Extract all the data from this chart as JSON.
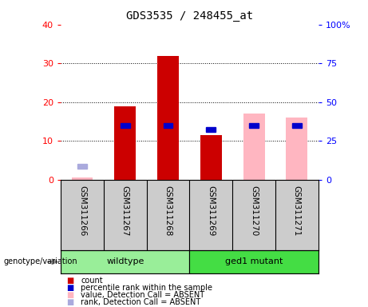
{
  "title": "GDS3535 / 248455_at",
  "samples": [
    "GSM311266",
    "GSM311267",
    "GSM311268",
    "GSM311269",
    "GSM311270",
    "GSM311271"
  ],
  "count_values": [
    0.5,
    19,
    32,
    11.5,
    0,
    0
  ],
  "count_present": [
    false,
    true,
    true,
    true,
    false,
    false
  ],
  "percentile_values": [
    3.5,
    14,
    14,
    13,
    14,
    14
  ],
  "percentile_present": [
    false,
    true,
    true,
    true,
    true,
    true
  ],
  "value_absent_bars": [
    0.5,
    0,
    0,
    0,
    17,
    16
  ],
  "ylim_left": [
    0,
    40
  ],
  "ylim_right": [
    0,
    100
  ],
  "yticks_left": [
    0,
    10,
    20,
    30,
    40
  ],
  "yticks_right": [
    0,
    25,
    50,
    75,
    100
  ],
  "yticklabels_right": [
    "0",
    "25",
    "50",
    "75",
    "100%"
  ],
  "count_color": "#CC0000",
  "count_absent_color": "#FFB6C1",
  "percentile_color": "#0000CC",
  "percentile_absent_color": "#AAAADD",
  "bg_color": "#CCCCCC",
  "wildtype_color": "#99EE99",
  "mutant_color": "#44DD44",
  "legend_items": [
    {
      "color": "#CC0000",
      "label": "count"
    },
    {
      "color": "#0000CC",
      "label": "percentile rank within the sample"
    },
    {
      "color": "#FFB6C1",
      "label": "value, Detection Call = ABSENT"
    },
    {
      "color": "#AAAADD",
      "label": "rank, Detection Call = ABSENT"
    }
  ]
}
